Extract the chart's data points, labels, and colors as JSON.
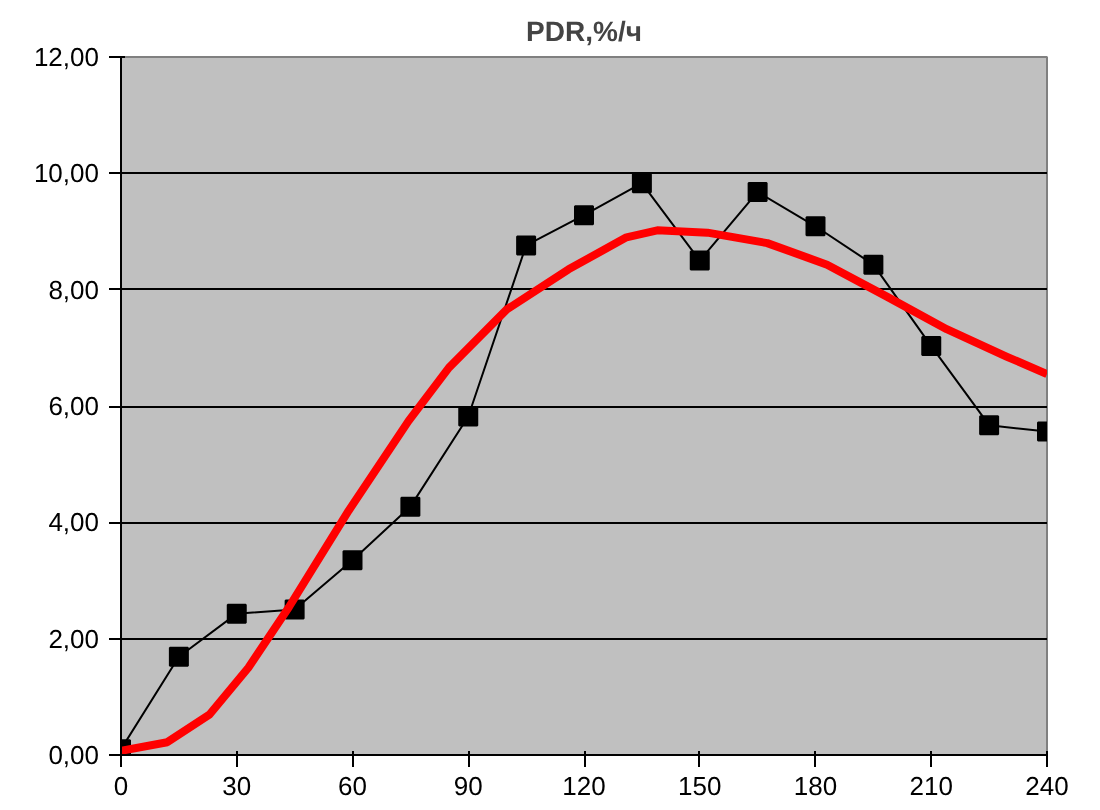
{
  "chart_data": {
    "type": "line",
    "title": "PDR,%/ч",
    "xlim": [
      0,
      240
    ],
    "xticks": [
      0,
      30,
      60,
      90,
      120,
      150,
      180,
      210,
      240
    ],
    "ylim": [
      0,
      12
    ],
    "yticks": [
      {
        "value": 0,
        "label": "0,00"
      },
      {
        "value": 2,
        "label": "2,00"
      },
      {
        "value": 4,
        "label": "4,00"
      },
      {
        "value": 6,
        "label": "6,00"
      },
      {
        "value": 8,
        "label": "8,00"
      },
      {
        "value": 10,
        "label": "10,00"
      },
      {
        "value": 12,
        "label": "12,00"
      }
    ],
    "grid": "y",
    "series": [
      {
        "color": "#000000",
        "marker": "square",
        "x": [
          0,
          15,
          30,
          45,
          60,
          75,
          90,
          105,
          120,
          135,
          150,
          165,
          180,
          195,
          210,
          225,
          240
        ],
        "values": [
          0.1,
          1.69,
          2.43,
          2.5,
          3.35,
          4.27,
          5.82,
          8.76,
          9.28,
          9.83,
          8.5,
          9.68,
          9.09,
          8.43,
          7.03,
          5.67,
          5.56
        ]
      },
      {
        "color": "#ff0000",
        "marker": "none",
        "x": [
          0,
          12,
          23,
          33,
          43.5,
          59,
          74.5,
          85,
          100,
          116,
          131,
          139,
          152,
          167.5,
          183,
          198.5,
          214,
          229.5,
          240
        ],
        "values": [
          0.07,
          0.22,
          0.7,
          1.5,
          2.54,
          4.2,
          5.74,
          6.66,
          7.66,
          8.35,
          8.9,
          9.02,
          8.98,
          8.8,
          8.43,
          7.88,
          7.32,
          6.85,
          6.55
        ]
      }
    ]
  }
}
